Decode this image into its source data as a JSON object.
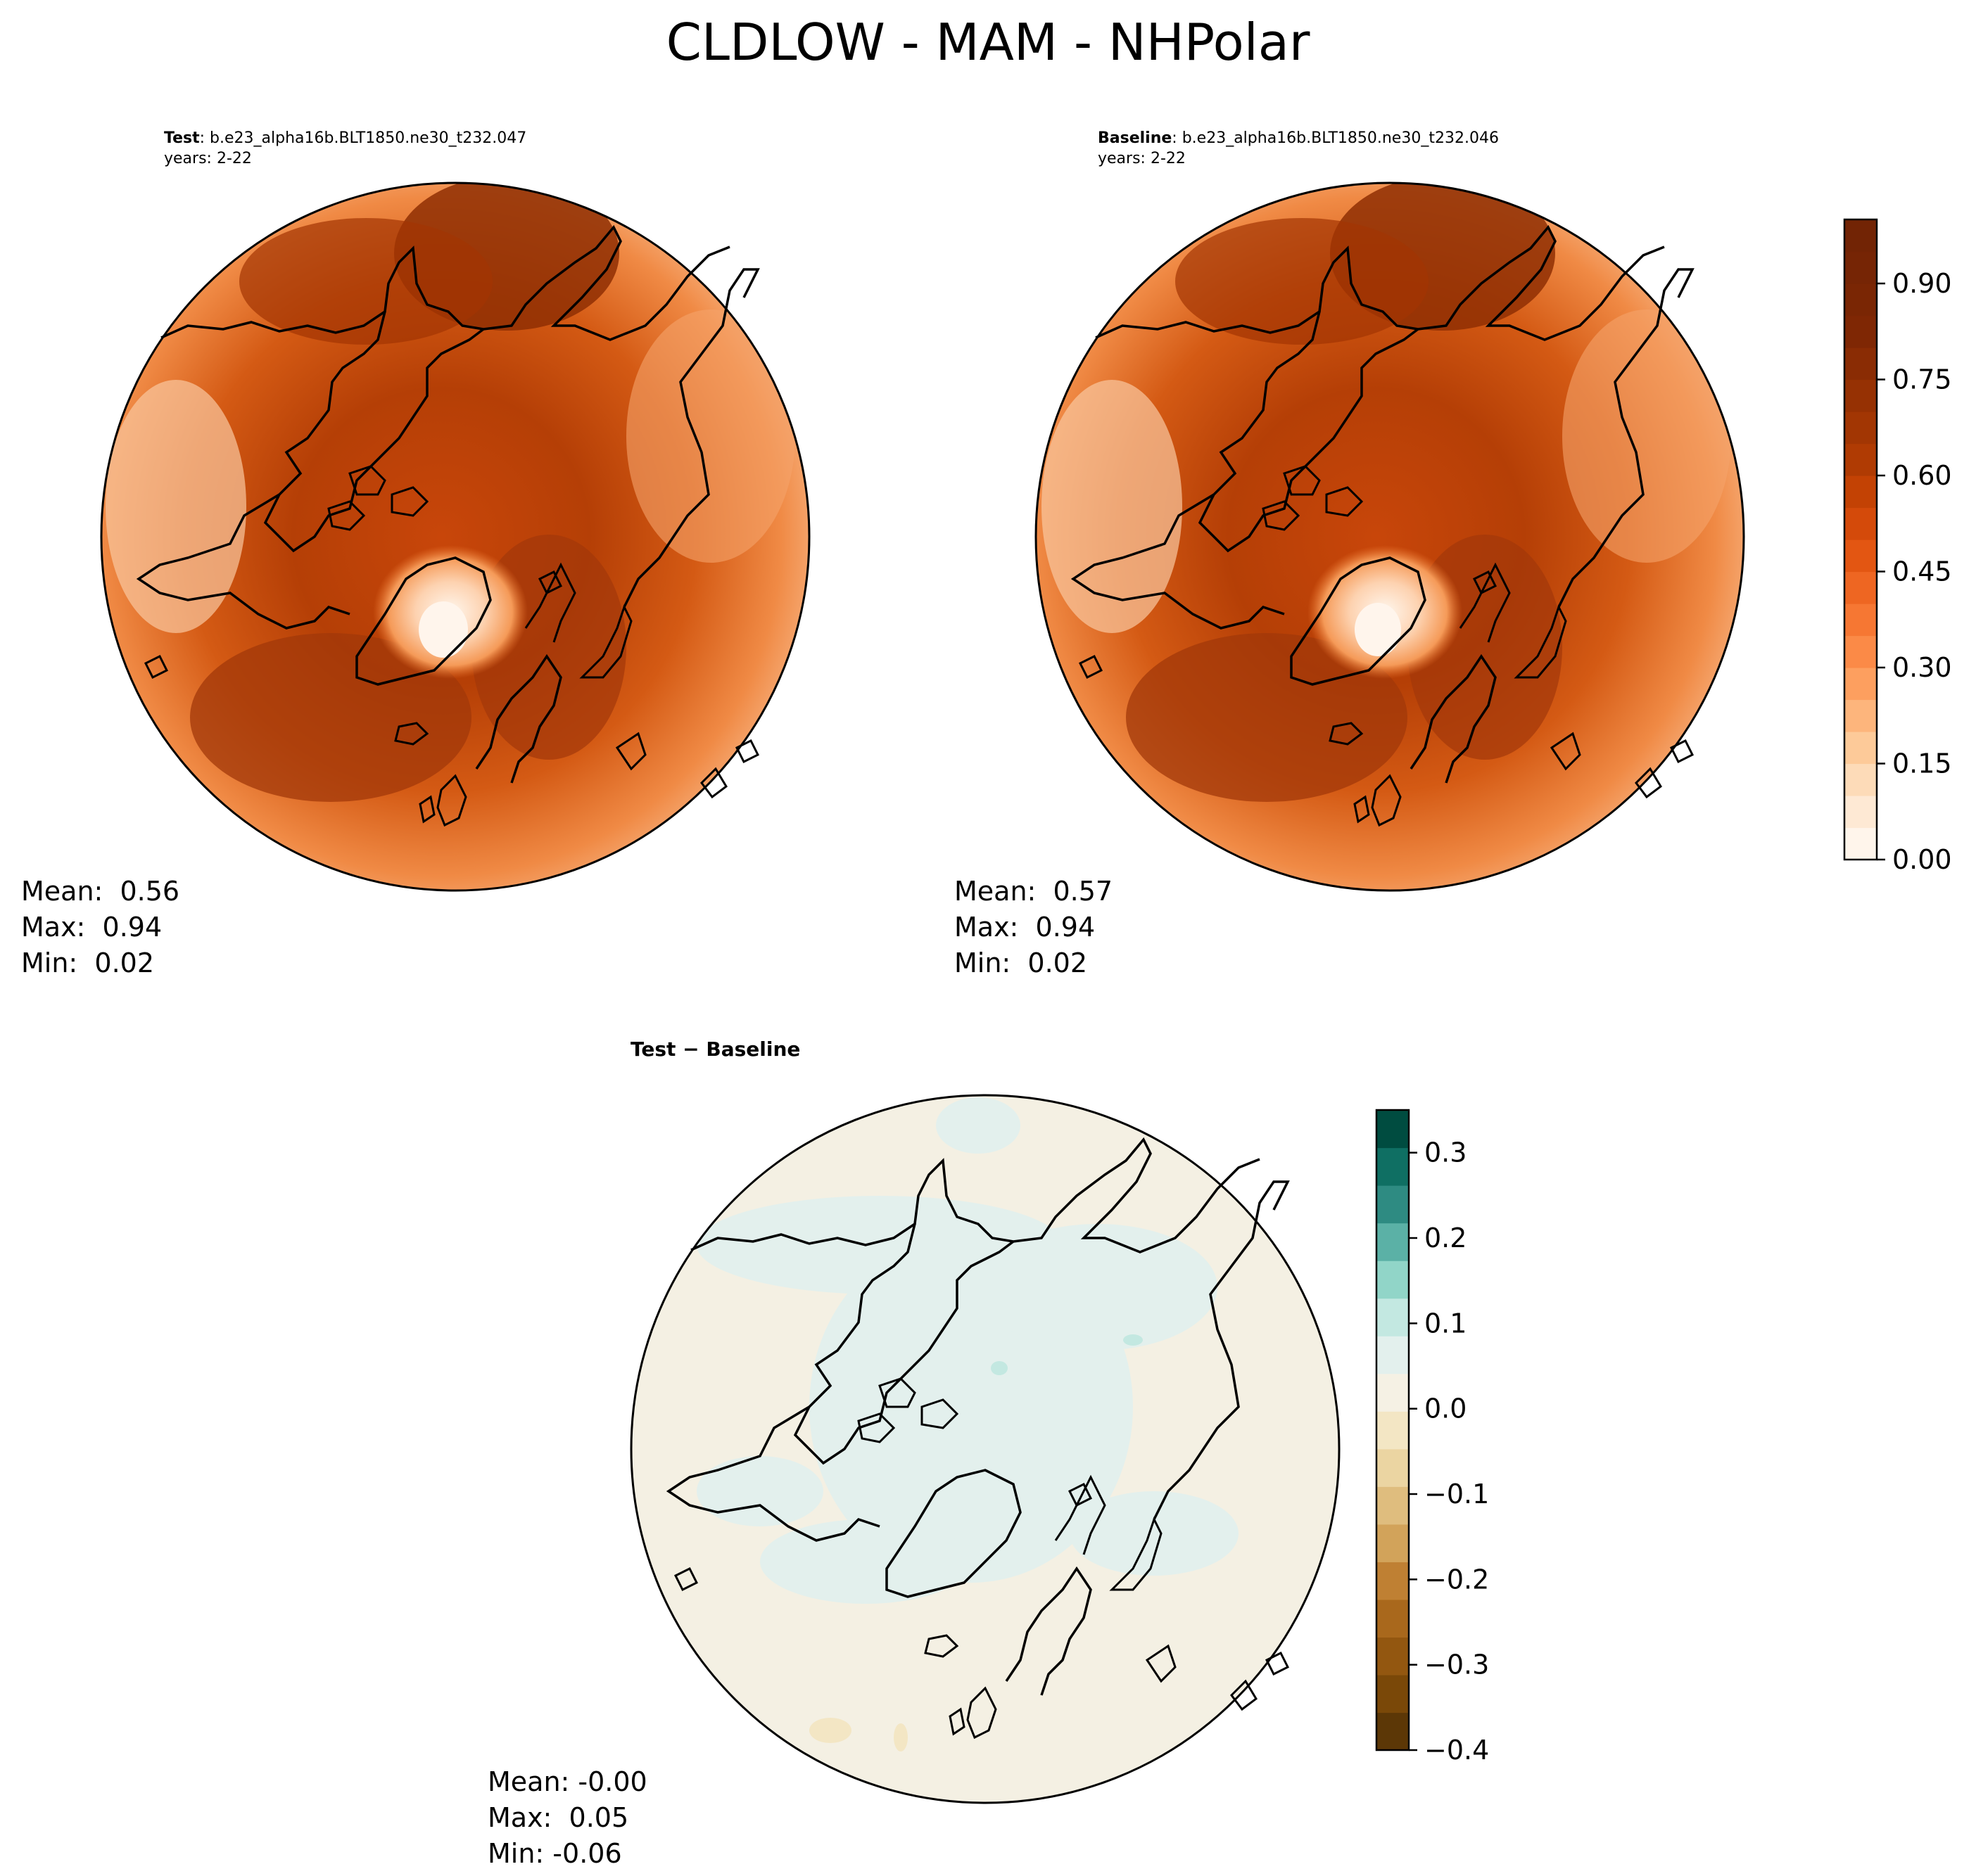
{
  "figure": {
    "title": "CLDLOW - MAM - NHPolar"
  },
  "panels": [
    {
      "id": "test",
      "label_bold": "Test",
      "label_case": ": b.e23_alpha16b.BLT1850.ne30_t232.047",
      "years": "years: 2-22",
      "stats": {
        "mean": "Mean:  0.56",
        "max": "Max:  0.94",
        "min": "Min:  0.02"
      }
    },
    {
      "id": "baseline",
      "label_bold": "Baseline",
      "label_case": ": b.e23_alpha16b.BLT1850.ne30_t232.046",
      "years": "years: 2-22",
      "stats": {
        "mean": "Mean:  0.57",
        "max": "Max:  0.94",
        "min": "Min:  0.02"
      }
    },
    {
      "id": "difference",
      "title": "Test − Baseline",
      "stats": {
        "mean": "Mean: -0.00",
        "max": "Max:  0.05",
        "min": "Min: -0.06"
      }
    }
  ],
  "colorbars": {
    "field": {
      "ticks": [
        "0.00",
        "0.15",
        "0.30",
        "0.45",
        "0.60",
        "0.75",
        "0.90"
      ],
      "tick_values": [
        0.0,
        0.15,
        0.3,
        0.45,
        0.6,
        0.75,
        0.9
      ],
      "range": [
        0.0,
        1.0
      ],
      "levels": 20,
      "colors": [
        "#fff5eb",
        "#fee9d4",
        "#fddbb8",
        "#fdca99",
        "#fdb57c",
        "#fd9f5f",
        "#fb8a47",
        "#f67733",
        "#ee6622",
        "#e35612",
        "#d44a0a",
        "#c34204",
        "#b03b03",
        "#a23603",
        "#963103",
        "#8a2c04",
        "#7f2704",
        "#7a2604",
        "#762505",
        "#722405"
      ]
    },
    "difference": {
      "ticks": [
        "0.3",
        "0.2",
        "0.1",
        "0.0",
        "−0.1",
        "−0.2",
        "−0.3",
        "−0.4"
      ],
      "tick_values": [
        0.3,
        0.2,
        0.1,
        0.0,
        -0.1,
        -0.2,
        -0.3,
        -0.4
      ],
      "range": [
        -0.4,
        0.35
      ],
      "colors_bottom_to_top": [
        "#5c3706",
        "#7a4808",
        "#935710",
        "#a9681c",
        "#bf8033",
        "#d2a35a",
        "#dfbd7e",
        "#ebd5a2",
        "#f3e6c4",
        "#f5f1e4",
        "#e3f0ed",
        "#c3e8e1",
        "#91d5c8",
        "#5bb1a6",
        "#2e8b82",
        "#0f6f63",
        "#004c40"
      ]
    }
  },
  "map_colors": {
    "ocean_deep": "#a4390a",
    "ocean_mid": "#d4530c",
    "land_light": "#fcb585",
    "greenland_center": "#fff3e4",
    "diff_neutral": "#f4f0e3",
    "diff_positive": "#e3f0ed"
  }
}
